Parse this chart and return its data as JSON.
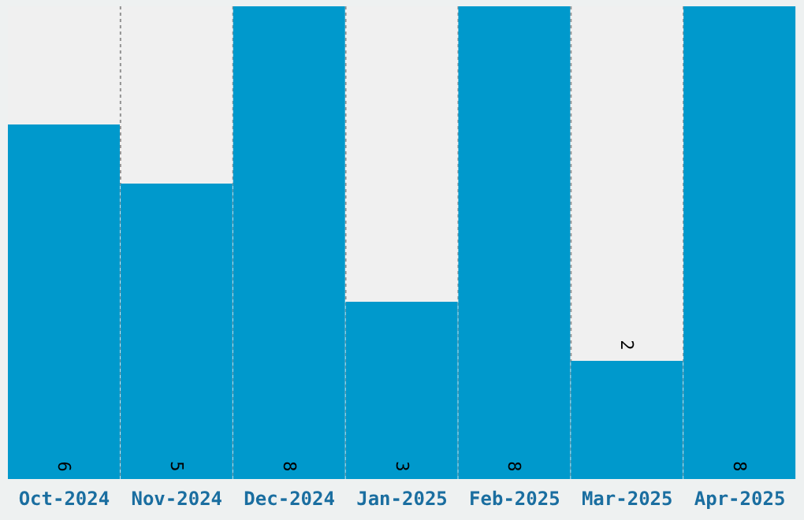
{
  "chart_data": {
    "type": "bar",
    "categories": [
      "Oct-2024",
      "Nov-2024",
      "Dec-2024",
      "Jan-2025",
      "Feb-2025",
      "Mar-2025",
      "Apr-2025"
    ],
    "values": [
      6,
      5,
      8,
      3,
      8,
      2,
      8
    ],
    "color": "#0099cc",
    "data_labels": true,
    "grid": "x",
    "tick_labels": "x"
  }
}
